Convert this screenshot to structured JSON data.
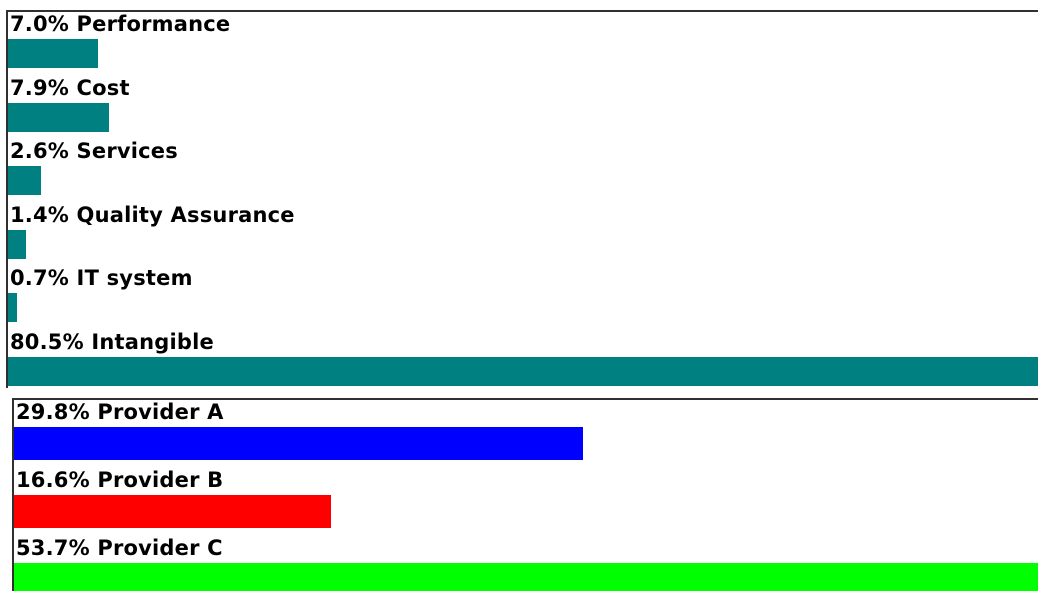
{
  "chart_data": [
    {
      "type": "bar",
      "orientation": "horizontal",
      "categories": [
        "Performance",
        "Cost",
        "Services",
        "Quality Assurance",
        "IT system",
        "Intangible"
      ],
      "values": [
        7.0,
        7.9,
        2.6,
        1.4,
        0.7,
        80.5
      ],
      "labels": [
        "7.0% Performance",
        "7.9% Cost",
        "2.6% Services",
        "1.4% Quality Assurance",
        "0.7% IT system",
        "80.5% Intangible"
      ],
      "colors": [
        "#008080",
        "#008080",
        "#008080",
        "#008080",
        "#008080",
        "#008080"
      ],
      "xlim": [
        0,
        80.5
      ],
      "grid": false
    },
    {
      "type": "bar",
      "orientation": "horizontal",
      "categories": [
        "Provider A",
        "Provider B",
        "Provider C"
      ],
      "values": [
        29.8,
        16.6,
        53.7
      ],
      "labels": [
        "29.8% Provider A",
        "16.6% Provider B",
        "53.7% Provider C"
      ],
      "colors": [
        "#0000ff",
        "#ff0000",
        "#00ff00"
      ],
      "xlim": [
        0,
        53.7
      ],
      "grid": false
    }
  ]
}
